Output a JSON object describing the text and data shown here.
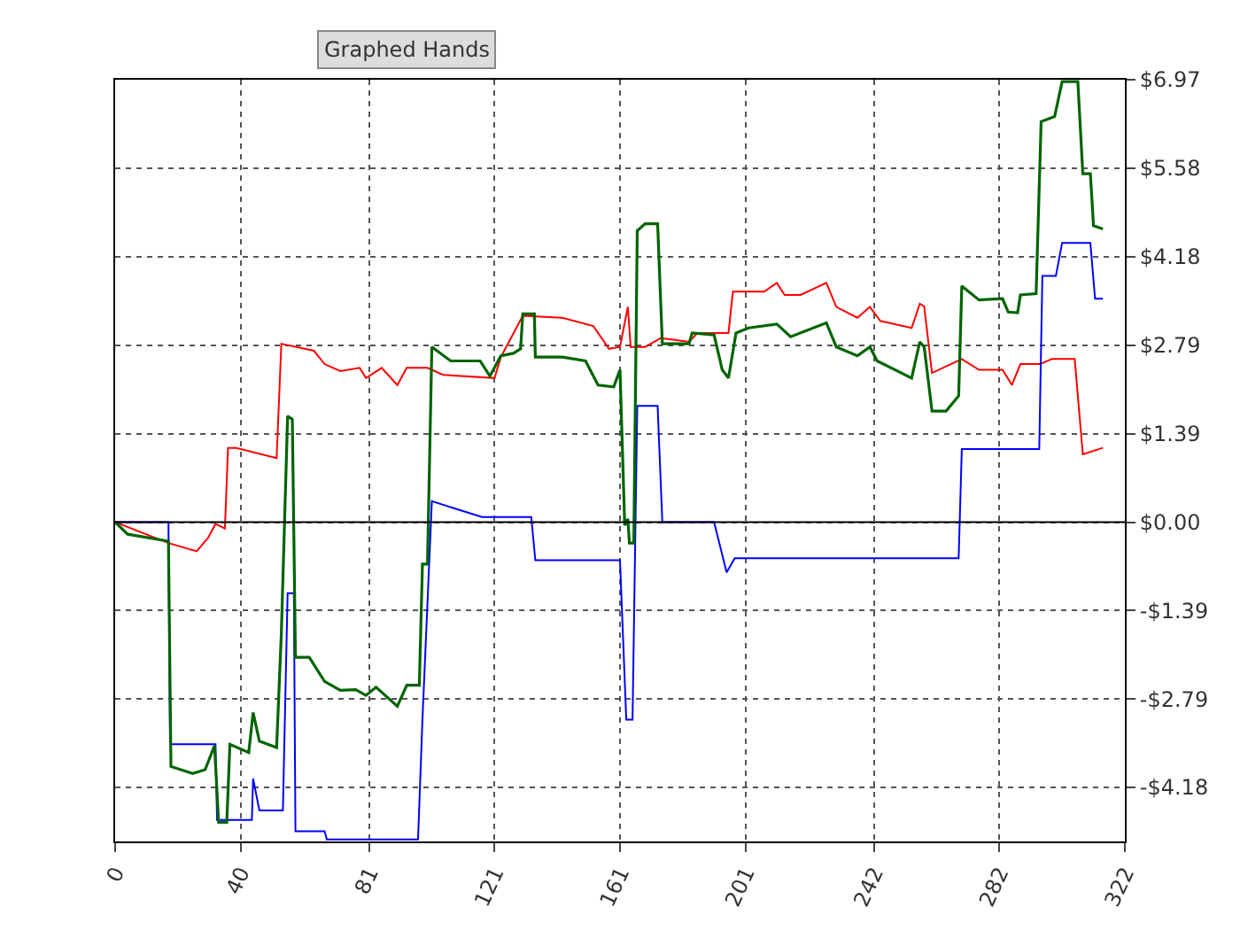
{
  "chart_data": {
    "type": "line",
    "annotations": [
      "Graphed Hands"
    ],
    "series": [
      {
        "color": "#ff0000",
        "x": [
          0,
          17,
          26,
          29.6,
          32,
          35,
          36,
          38.6,
          51.5,
          53,
          63.4,
          66.8,
          71.8,
          78,
          80,
          85,
          90,
          93,
          99.6,
          104.6,
          121,
          123,
          130,
          142.6,
          152.5,
          157.5,
          161,
          163.5,
          164.4,
          169,
          174,
          183,
          185.7,
          191,
          195.6,
          197,
          207,
          211,
          213.5,
          218.6,
          226.8,
          230,
          236.7,
          240.7,
          244,
          254,
          256.6,
          258,
          260.5,
          270,
          275.5,
          283,
          286,
          288.7,
          295,
          298.7,
          306,
          308.6,
          315
        ],
        "values": [
          0,
          -0.33,
          -0.46,
          -0.25,
          -0.03,
          -0.1,
          1.17,
          1.17,
          1.01,
          2.81,
          2.7,
          2.49,
          2.38,
          2.43,
          2.27,
          2.43,
          2.16,
          2.43,
          2.43,
          2.32,
          2.27,
          2.6,
          3.25,
          3.22,
          3.09,
          2.73,
          2.76,
          3.39,
          2.76,
          2.76,
          2.9,
          2.84,
          2.98,
          2.98,
          2.98,
          3.63,
          3.63,
          3.77,
          3.58,
          3.58,
          3.77,
          3.39,
          3.22,
          3.39,
          3.17,
          3.06,
          3.44,
          3.4,
          2.35,
          2.57,
          2.4,
          2.4,
          2.16,
          2.49,
          2.49,
          2.57,
          2.57,
          1.07,
          1.17
        ]
      },
      {
        "color": "#0000ff",
        "x": [
          0,
          17,
          17.5,
          32,
          32.5,
          43.6,
          44,
          46,
          53.5,
          55,
          57,
          57.5,
          66.8,
          67.5,
          96.6,
          98,
          101,
          108,
          117,
          132.7,
          134,
          161,
          163,
          165,
          166.5,
          173,
          174.5,
          191,
          195,
          197.6,
          269,
          270,
          294.7,
          295.7,
          300,
          302,
          311,
          312.5,
          315
        ],
        "values": [
          0,
          0,
          -3.5,
          -3.5,
          -4.69,
          -4.69,
          -4.04,
          -4.54,
          -4.54,
          -1.12,
          -1.12,
          -4.87,
          -4.87,
          -5.0,
          -5.0,
          -3.11,
          0.33,
          0.22,
          0.08,
          0.08,
          -0.6,
          -0.6,
          -3.11,
          -3.11,
          1.83,
          1.83,
          0.0,
          0.0,
          -0.79,
          -0.57,
          -0.57,
          1.15,
          1.15,
          3.88,
          3.88,
          4.4,
          4.4,
          3.52,
          3.52
        ]
      },
      {
        "color": "#006400",
        "x": [
          0,
          4,
          17,
          17.8,
          24.7,
          28.7,
          31.7,
          33,
          35.6,
          36.6,
          42.6,
          44,
          46,
          51.5,
          53,
          55,
          56.5,
          57.5,
          61.9,
          66.8,
          71.8,
          76.7,
          80,
          83.2,
          90,
          93,
          97,
          98,
          99.6,
          101,
          107,
          116.4,
          119.5,
          123,
          127,
          129.3,
          130,
          133.7,
          134,
          142.6,
          150,
          154,
          159,
          161,
          162.5,
          163.5,
          164,
          165.4,
          166.5,
          169,
          173,
          174.5,
          183,
          184,
          191,
          193.6,
          195.6,
          198,
          202,
          211,
          215.4,
          226.8,
          230,
          236.7,
          240.7,
          243,
          254,
          256.6,
          258,
          260.5,
          265,
          269,
          270,
          275.5,
          283,
          284.8,
          287.8,
          288.7,
          293.7,
          295.3,
          299.6,
          302,
          307,
          308.6,
          311,
          312,
          315
        ],
        "values": [
          0,
          -0.19,
          -0.3,
          -3.85,
          -3.96,
          -3.9,
          -3.52,
          -4.73,
          -4.73,
          -3.5,
          -3.63,
          -3.0,
          -3.45,
          -3.55,
          -1.75,
          1.67,
          1.62,
          -2.13,
          -2.13,
          -2.51,
          -2.65,
          -2.64,
          -2.73,
          -2.6,
          -2.9,
          -2.57,
          -2.57,
          -0.66,
          -0.66,
          2.76,
          2.54,
          2.54,
          2.3,
          2.62,
          2.66,
          2.73,
          3.28,
          3.28,
          2.6,
          2.6,
          2.54,
          2.16,
          2.13,
          2.4,
          -0.05,
          0.05,
          -0.33,
          -0.33,
          4.59,
          4.7,
          4.7,
          2.81,
          2.81,
          2.98,
          2.95,
          2.4,
          2.27,
          2.98,
          3.06,
          3.12,
          2.92,
          3.14,
          2.76,
          2.62,
          2.76,
          2.54,
          2.27,
          2.84,
          2.76,
          1.75,
          1.75,
          1.99,
          3.72,
          3.5,
          3.52,
          3.31,
          3.3,
          3.58,
          3.6,
          6.31,
          6.39,
          6.94,
          6.94,
          5.49,
          5.49,
          4.67,
          4.62
        ]
      }
    ],
    "xlim": [
      0,
      322
    ],
    "xticks": [
      0,
      40,
      81,
      121,
      161,
      201,
      242,
      282,
      322
    ],
    "ylim": [
      -5.03,
      6.97
    ],
    "yticks": [
      {
        "value": -4.18,
        "label": "-$4.18"
      },
      {
        "value": -2.79,
        "label": "-$2.79"
      },
      {
        "value": -1.39,
        "label": "-$1.39"
      },
      {
        "value": 0,
        "label": "$0.00"
      },
      {
        "value": 1.39,
        "label": "$1.39"
      },
      {
        "value": 2.79,
        "label": "$2.79"
      },
      {
        "value": 4.18,
        "label": "$4.18"
      },
      {
        "value": 5.58,
        "label": "$5.58"
      },
      {
        "value": 6.97,
        "label": "$6.97"
      }
    ],
    "ref_lines": [
      {
        "axis": "y",
        "value": 0,
        "color": "#000000"
      }
    ],
    "grid": true,
    "marker": "none",
    "line_style": "solid"
  }
}
